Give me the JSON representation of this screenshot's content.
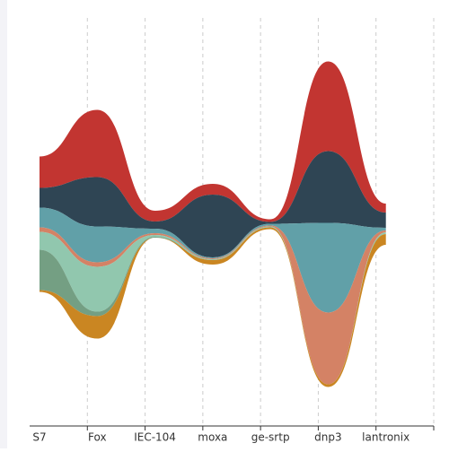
{
  "chart_data": {
    "type": "themeRiver",
    "categories": [
      "S7",
      "Fox",
      "IEC-104",
      "moxa",
      "ge-srtp",
      "dnp3",
      "lantronix"
    ],
    "series": [
      {
        "color": "#c23531",
        "values": [
          35,
          75,
          12,
          12,
          3,
          100,
          10
        ]
      },
      {
        "color": "#2f4554",
        "values": [
          22,
          55,
          8,
          70,
          2,
          80,
          17
        ]
      },
      {
        "color": "#61a0a8",
        "values": [
          22,
          40,
          5,
          1,
          2,
          100,
          3
        ]
      },
      {
        "color": "#d48265",
        "values": [
          5,
          5,
          2,
          1,
          1,
          80,
          2
        ]
      },
      {
        "color": "#91c7ae",
        "values": [
          20,
          50,
          2,
          1,
          1,
          0,
          2
        ]
      },
      {
        "color": "#749f83",
        "values": [
          45,
          5,
          1,
          0,
          0,
          0,
          0
        ]
      },
      {
        "color": "#ca8622",
        "values": [
          2,
          25,
          0,
          5,
          2,
          3,
          12
        ]
      }
    ]
  }
}
